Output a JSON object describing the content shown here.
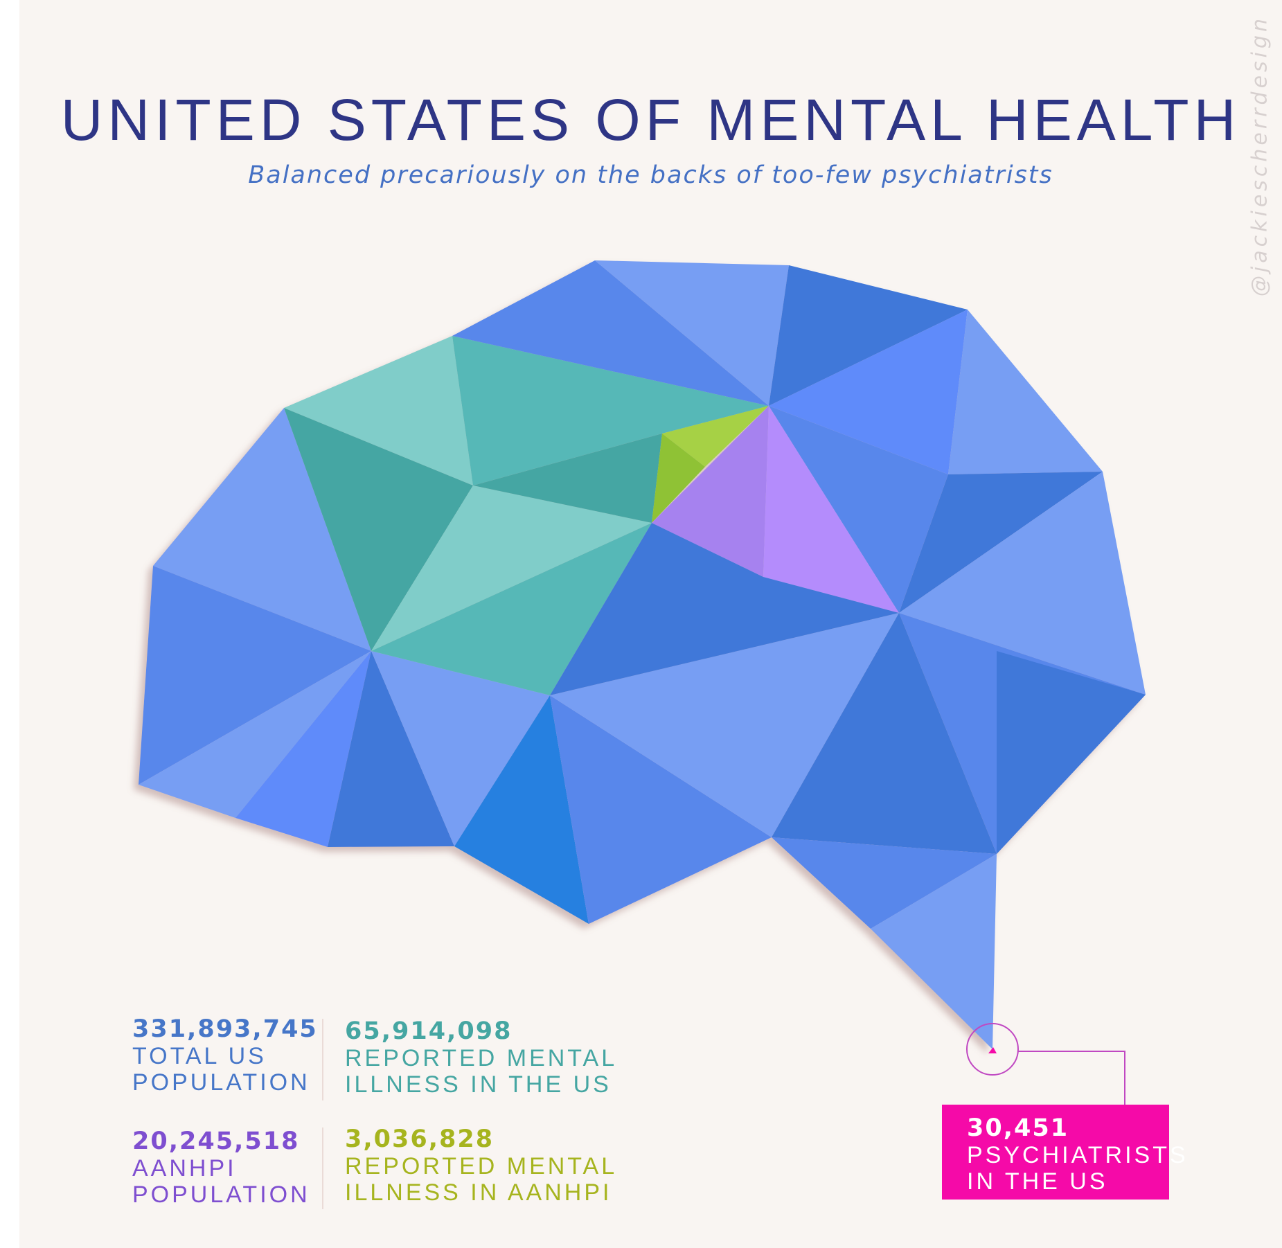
{
  "header": {
    "title": "UNITED STATES OF MENTAL HEALTH",
    "subtitle": "Balanced precariously on the backs of too-few psychiatrists",
    "credit": "@jackiescherrdesign"
  },
  "stats": {
    "total_us": {
      "value": "331,893,745",
      "label": "TOTAL US\nPOPULATION",
      "color": "#4676c8"
    },
    "mental_illness_us": {
      "value": "65,914,098",
      "label": "REPORTED MENTAL\nILLNESS IN THE US",
      "color": "#45a6a2"
    },
    "aanhpi_population": {
      "value": "20,245,518",
      "label": "AANHPI\nPOPULATION",
      "color": "#7e4ed0"
    },
    "mental_illness_aanhpi": {
      "value": "3,036,828",
      "label": "REPORTED MENTAL\nILLNESS IN AANHPI",
      "color": "#a6b41e"
    }
  },
  "callout": {
    "value": "30,451",
    "label": "PSYCHIATRISTS\nIN THE US",
    "color": "#f50aa8"
  },
  "palette": {
    "blue_light": "#779ef3",
    "blue_mid": "#5887eb",
    "blue_dark": "#3f78d9",
    "blue_bright": "#5f8bfa",
    "blue_vivid": "#2780e0",
    "teal_light": "#80cdc9",
    "teal_mid": "#57b8b7",
    "teal_dark": "#44a6a3",
    "green": "#a6d144",
    "green_dark": "#8fc235",
    "purple": "#a682ef",
    "purple_light": "#b48cfc"
  }
}
